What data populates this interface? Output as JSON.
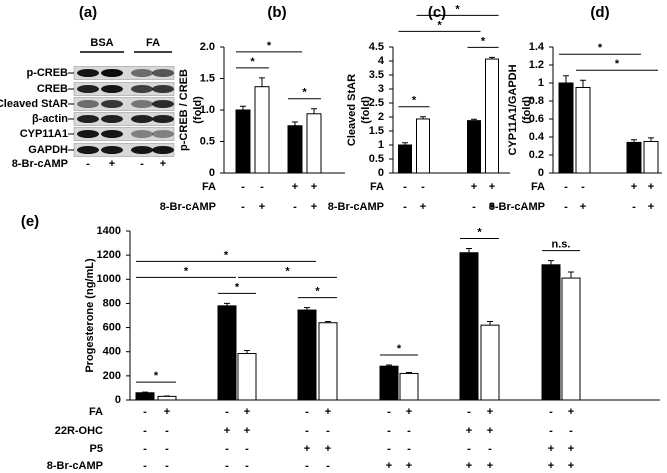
{
  "blot": {
    "panel": "(a)",
    "groups": [
      "BSA",
      "FA"
    ],
    "rows": [
      "p-CREB",
      "CREB",
      "Cleaved StAR",
      "β-actin",
      "CYP11A1",
      "GAPDH"
    ],
    "treatment": {
      "label": "8-Br-cAMP",
      "signs": [
        "-",
        "+",
        "-",
        "+"
      ]
    }
  },
  "chart_data": [
    {
      "type": "bar",
      "panel": "(b)",
      "ylabel": [
        "p-CREB / CREB",
        "(fold)"
      ],
      "values": [
        1.0,
        1.37,
        0.75,
        0.94
      ],
      "errors": [
        0.06,
        0.14,
        0.06,
        0.08
      ],
      "colors": [
        "#000000",
        "#ffffff",
        "#000000",
        "#ffffff"
      ],
      "ylim": [
        0,
        2
      ],
      "yticks": [
        0,
        0.5,
        {
          "value": 1,
          "label": "1.0"
        },
        1.5,
        {
          "value": 2,
          "label": "2.0"
        }
      ],
      "conditions": [
        {
          "label": "FA",
          "signs": [
            "-",
            "-",
            "+",
            "+"
          ]
        },
        {
          "label": "8-Br-cAMP",
          "signs": [
            "-",
            "+",
            "-",
            "+"
          ]
        }
      ],
      "comparisons": [
        {
          "label": "*",
          "from": 0,
          "to": 1
        },
        {
          "label": "*",
          "from": 2,
          "to": 3
        },
        {
          "label": "*",
          "from": 0,
          "to": 2
        }
      ]
    },
    {
      "type": "bar",
      "panel": "(c)",
      "ylabel": [
        "Cleaved StAR",
        "(fold)"
      ],
      "values": [
        1.0,
        1.93,
        1.87,
        4.07
      ],
      "errors": [
        0.08,
        0.08,
        0.05,
        0.06
      ],
      "colors": [
        "#000000",
        "#ffffff",
        "#000000",
        "#ffffff"
      ],
      "ylim": [
        0,
        4.5
      ],
      "yticks": [
        0,
        0.5,
        1,
        1.5,
        2,
        2.5,
        3,
        3.5,
        4,
        4.5
      ],
      "conditions": [
        {
          "label": "FA",
          "signs": [
            "-",
            "-",
            "+",
            "+"
          ]
        },
        {
          "label": "8-Br-cAMP",
          "signs": [
            "-",
            "+",
            "-",
            "+"
          ]
        }
      ],
      "comparisons": [
        {
          "label": "*",
          "from": 0,
          "to": 1
        },
        {
          "label": "*",
          "from": 2,
          "to": 3
        },
        {
          "label": "*",
          "from": 0,
          "to": 2
        },
        {
          "label": "*",
          "from": 1,
          "to": 3
        }
      ]
    },
    {
      "type": "bar",
      "panel": "(d)",
      "ylabel": [
        "CYP11A1/GAPDH",
        "(fold)"
      ],
      "values": [
        1.0,
        0.95,
        0.34,
        0.35
      ],
      "errors": [
        0.08,
        0.08,
        0.03,
        0.04
      ],
      "colors": [
        "#000000",
        "#ffffff",
        "#000000",
        "#ffffff"
      ],
      "ylim": [
        0,
        1.4
      ],
      "yticks": [
        0,
        0.2,
        0.4,
        0.6,
        0.8,
        1,
        1.2,
        1.4
      ],
      "conditions": [
        {
          "label": "FA",
          "signs": [
            "-",
            "-",
            "+",
            "+"
          ]
        },
        {
          "label": "8-Br-cAMP",
          "signs": [
            "-",
            "+",
            "-",
            "+"
          ]
        }
      ],
      "comparisons": [
        {
          "label": "*",
          "from": 1,
          "to": 3
        },
        {
          "label": "*",
          "from": 0,
          "to": 2
        }
      ]
    },
    {
      "type": "bar",
      "panel": "(e)",
      "ylabel": [
        "Progesterone (ng/mL)"
      ],
      "values": [
        60,
        30,
        780,
        385,
        745,
        640,
        280,
        220,
        1220,
        620,
        1120,
        1010
      ],
      "errors": [
        5,
        3,
        20,
        25,
        20,
        10,
        10,
        8,
        35,
        30,
        35,
        50
      ],
      "colors": [
        "#000000",
        "#ffffff",
        "#000000",
        "#ffffff",
        "#000000",
        "#ffffff",
        "#000000",
        "#ffffff",
        "#000000",
        "#ffffff",
        "#000000",
        "#ffffff"
      ],
      "ylim": [
        0,
        1400
      ],
      "yticks": [
        0,
        200,
        400,
        600,
        800,
        1000,
        1200,
        1400
      ],
      "conditions": [
        {
          "label": "FA",
          "signs": [
            "-",
            "+",
            "-",
            "+",
            "-",
            "+",
            "-",
            "+",
            "-",
            "+",
            "-",
            "+"
          ]
        },
        {
          "label": "22R-OHC",
          "signs": [
            "-",
            "-",
            "+",
            "+",
            "-",
            "-",
            "-",
            "-",
            "+",
            "+",
            "-",
            "-"
          ]
        },
        {
          "label": "P5",
          "signs": [
            "-",
            "-",
            "-",
            "-",
            "+",
            "+",
            "-",
            "-",
            "-",
            "-",
            "+",
            "+"
          ]
        },
        {
          "label": "8-Br-cAMP",
          "signs": [
            "-",
            "-",
            "-",
            "-",
            "-",
            "-",
            "+",
            "+",
            "+",
            "+",
            "+",
            "+"
          ]
        }
      ],
      "comparisons": [
        {
          "label": "*",
          "from": 0,
          "to": 1
        },
        {
          "label": "*",
          "from": 2,
          "to": 3
        },
        {
          "label": "*",
          "from": 4,
          "to": 5
        },
        {
          "label": "*",
          "from": 6,
          "to": 7
        },
        {
          "label": "*",
          "from": 8,
          "to": 9
        },
        {
          "label": "n.s.",
          "from": 10,
          "to": 11
        },
        {
          "label": "*",
          "from": 0,
          "to": 2
        },
        {
          "label": "*",
          "from": 3,
          "to": 5
        },
        {
          "label": "*",
          "from": 0,
          "to": 4
        }
      ]
    }
  ]
}
